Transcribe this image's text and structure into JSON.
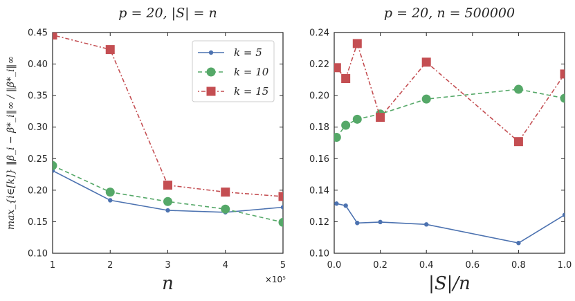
{
  "colors": {
    "k5": "#4c72b0",
    "k10": "#55a868",
    "k15": "#c44e52",
    "axis": "#262626"
  },
  "chart_data": [
    {
      "type": "line",
      "title": "p = 20, |S| = n",
      "xlabel": "n",
      "ylabel": "max_{i∈[k]} ‖β_i − β*_i‖∞ / ‖β*_i‖∞",
      "x_multiplier": "×10⁵",
      "xlim": [
        1,
        5
      ],
      "ylim": [
        0.1,
        0.45
      ],
      "x_ticks": [
        1,
        2,
        3,
        4,
        5
      ],
      "x_tick_labels": [
        "1",
        "2",
        "3",
        "4",
        "5"
      ],
      "y_ticks": [
        0.1,
        0.15,
        0.2,
        0.25,
        0.3,
        0.35,
        0.4,
        0.45
      ],
      "y_tick_labels": [
        "0.10",
        "0.15",
        "0.20",
        "0.25",
        "0.30",
        "0.35",
        "0.40",
        "0.45"
      ],
      "x": [
        1,
        2,
        3,
        4,
        5
      ],
      "legend": {
        "placement": "top-right"
      },
      "series": [
        {
          "name": "k = 5",
          "values": [
            0.231,
            0.184,
            0.168,
            0.165,
            0.173
          ]
        },
        {
          "name": "k = 10",
          "values": [
            0.239,
            0.197,
            0.182,
            0.17,
            0.149
          ]
        },
        {
          "name": "k = 15",
          "values": [
            0.446,
            0.423,
            0.208,
            0.197,
            0.19
          ]
        }
      ]
    },
    {
      "type": "line",
      "title": "p = 20, n = 500000",
      "xlabel": "|S|/n",
      "ylabel": "",
      "xlim": [
        0.0,
        1.0
      ],
      "ylim": [
        0.1,
        0.24
      ],
      "x_ticks": [
        0.0,
        0.2,
        0.4,
        0.6,
        0.8,
        1.0
      ],
      "x_tick_labels": [
        "0.0",
        "0.2",
        "0.4",
        "0.6",
        "0.8",
        "1.0"
      ],
      "y_ticks": [
        0.1,
        0.12,
        0.14,
        0.16,
        0.18,
        0.2,
        0.22,
        0.24
      ],
      "y_tick_labels": [
        "0.10",
        "0.12",
        "0.14",
        "0.16",
        "0.18",
        "0.20",
        "0.22",
        "0.24"
      ],
      "x": [
        0.01,
        0.05,
        0.1,
        0.2,
        0.4,
        0.8,
        1.0
      ],
      "series": [
        {
          "name": "k = 5",
          "values": [
            0.1315,
            0.1302,
            0.1192,
            0.1198,
            0.1183,
            0.1065,
            0.1243
          ]
        },
        {
          "name": "k = 10",
          "values": [
            0.1735,
            0.1812,
            0.185,
            0.1883,
            0.1978,
            0.204,
            0.1983
          ]
        },
        {
          "name": "k = 15",
          "values": [
            0.2177,
            0.2108,
            0.233,
            0.1862,
            0.2212,
            0.1708,
            0.2137
          ]
        }
      ]
    }
  ]
}
